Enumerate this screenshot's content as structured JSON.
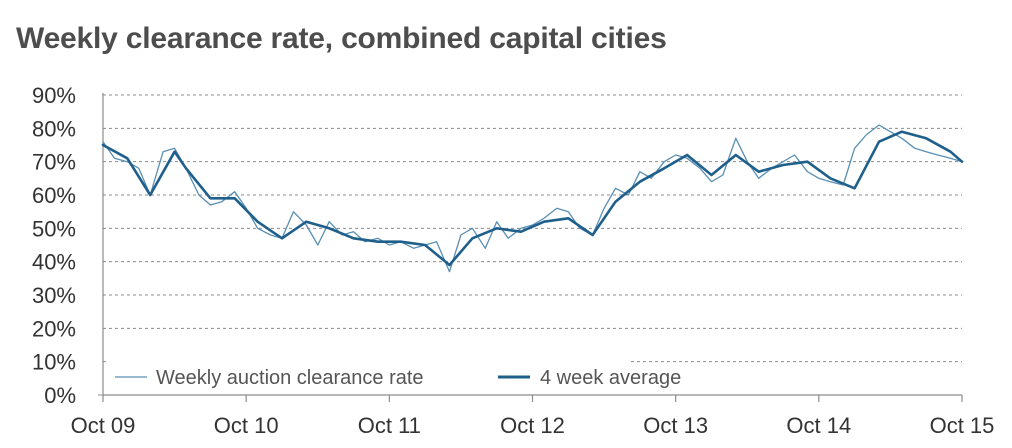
{
  "chart_data": {
    "type": "line",
    "title": "Weekly clearance rate, combined capital cities",
    "xlabel": "",
    "ylabel": "",
    "x_tick_labels": [
      "Oct 09",
      "Oct 10",
      "Oct 11",
      "Oct 12",
      "Oct 13",
      "Oct 14",
      "Oct 15"
    ],
    "y_tick_labels": [
      "0%",
      "10%",
      "20%",
      "30%",
      "40%",
      "50%",
      "60%",
      "70%",
      "80%",
      "90%"
    ],
    "ylim": [
      0,
      90
    ],
    "grid": "horizontal dashed",
    "legend_position": "bottom-left",
    "series": [
      {
        "name": "Weekly auction clearance rate",
        "color": "#5a8fb4",
        "style": "thin",
        "x": [
          0.0,
          0.08,
          0.17,
          0.25,
          0.33,
          0.42,
          0.5,
          0.58,
          0.67,
          0.75,
          0.83,
          0.92,
          1.0,
          1.08,
          1.17,
          1.25,
          1.33,
          1.42,
          1.5,
          1.58,
          1.67,
          1.75,
          1.83,
          1.92,
          2.0,
          2.08,
          2.17,
          2.25,
          2.33,
          2.42,
          2.5,
          2.58,
          2.67,
          2.75,
          2.83,
          2.92,
          3.0,
          3.08,
          3.17,
          3.25,
          3.33,
          3.42,
          3.5,
          3.58,
          3.67,
          3.75,
          3.83,
          3.92,
          4.0,
          4.08,
          4.17,
          4.25,
          4.33,
          4.42,
          4.5,
          4.58,
          4.67,
          4.75,
          4.83,
          4.92,
          5.0,
          5.08,
          5.17,
          5.25,
          5.33,
          5.42,
          5.5,
          5.58,
          5.67,
          5.75,
          5.83,
          5.92,
          6.0
        ],
        "values": [
          76,
          71,
          70,
          68,
          60,
          73,
          74,
          68,
          60,
          57,
          58,
          61,
          56,
          50,
          48,
          47,
          55,
          51,
          45,
          52,
          48,
          49,
          46,
          47,
          45,
          46,
          44,
          45,
          46,
          37,
          48,
          50,
          44,
          52,
          47,
          50,
          51,
          53,
          56,
          55,
          50,
          48,
          56,
          62,
          60,
          67,
          65,
          70,
          72,
          71,
          68,
          64,
          66,
          77,
          70,
          65,
          68,
          70,
          72,
          67,
          65,
          64,
          63,
          74,
          78,
          81,
          79,
          77,
          74,
          73,
          72,
          71,
          70
        ]
      },
      {
        "name": "4 week average",
        "color": "#1f5f8b",
        "style": "thick",
        "x": [
          0.0,
          0.17,
          0.33,
          0.5,
          0.58,
          0.75,
          0.92,
          1.08,
          1.25,
          1.42,
          1.58,
          1.75,
          1.92,
          2.08,
          2.25,
          2.42,
          2.58,
          2.75,
          2.92,
          3.08,
          3.25,
          3.42,
          3.58,
          3.75,
          3.92,
          4.08,
          4.25,
          4.42,
          4.58,
          4.75,
          4.92,
          5.08,
          5.25,
          5.42,
          5.58,
          5.75,
          5.92,
          6.0
        ],
        "values": [
          75,
          71,
          60,
          73,
          68,
          59,
          59,
          52,
          47,
          52,
          50,
          47,
          46,
          46,
          45,
          39,
          47,
          50,
          49,
          52,
          53,
          48,
          58,
          64,
          68,
          72,
          66,
          72,
          67,
          69,
          70,
          65,
          62,
          76,
          79,
          77,
          73,
          70
        ]
      }
    ]
  }
}
